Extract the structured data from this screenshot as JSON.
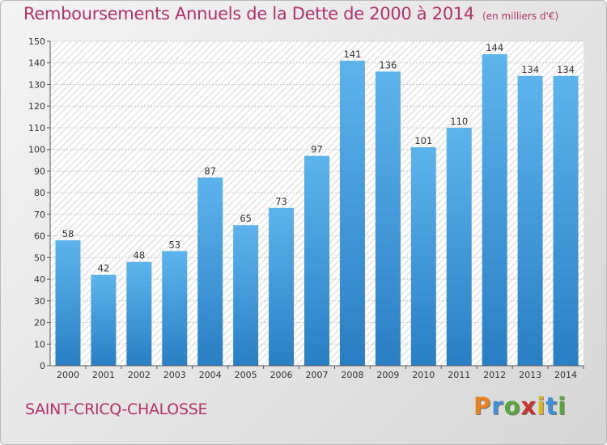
{
  "header": {
    "title": "Remboursements Annuels de la Dette de 2000 à 2014",
    "unit": "(en milliers d'€)"
  },
  "footer": {
    "commune": "SAINT-CRICQ-CHALOSSE",
    "logo_letters": [
      "P",
      "r",
      "o",
      "x",
      "i",
      "t",
      "i"
    ],
    "logo_colors": [
      "#e8801f",
      "#3b8fd6",
      "#5aa53a",
      "#c8322f",
      "#e0b41c",
      "#3b8fd6",
      "#5aa53a"
    ]
  },
  "chart_data": {
    "type": "bar",
    "title": "Remboursements Annuels de la Dette de 2000 à 2014",
    "categories": [
      "2000",
      "2001",
      "2002",
      "2003",
      "2004",
      "2005",
      "2006",
      "2007",
      "2008",
      "2009",
      "2010",
      "2011",
      "2012",
      "2013",
      "2014"
    ],
    "values": [
      58,
      42,
      48,
      53,
      87,
      65,
      73,
      97,
      141,
      136,
      101,
      110,
      144,
      134,
      134
    ],
    "ylim": [
      0,
      150
    ],
    "ytick_step": 10,
    "grid": true,
    "bar_color_top": "#5db4ec",
    "bar_color_bottom": "#2a7fc4"
  }
}
